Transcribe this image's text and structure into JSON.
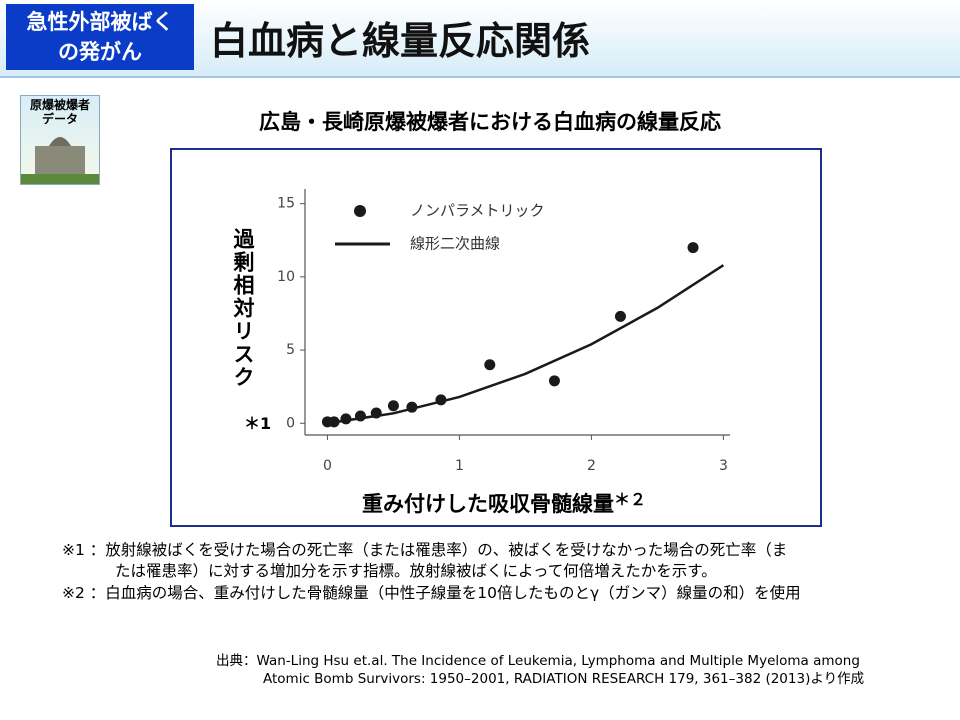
{
  "header": {
    "badge": [
      "急性外部被ばく",
      "の発がん"
    ],
    "title": "白血病と線量反応関係"
  },
  "icon": {
    "label": [
      "原爆被爆者",
      "データ"
    ]
  },
  "chart_data": {
    "type": "combo",
    "title": "広島・長崎原爆被爆者における白血病の線量反応",
    "y_label": "過剰相対リスク",
    "y_label_note": "＊1",
    "x_label": "重み付けした吸収骨髄線量",
    "x_label_note": "＊２",
    "xlim": [
      -0.17,
      3.05
    ],
    "ylim": [
      -0.8,
      16
    ],
    "xticks": [
      0,
      1,
      2,
      3
    ],
    "yticks": [
      0,
      5,
      10,
      15
    ],
    "legend": "upper left",
    "series": [
      {
        "name": "ノンパラメトリック",
        "type": "scatter",
        "color": "#1a1a1a",
        "x": [
          0,
          0.05,
          0.14,
          0.25,
          0.37,
          0.5,
          0.64,
          0.86,
          1.23,
          1.72,
          2.22,
          2.77
        ],
        "values": [
          0.1,
          0.1,
          0.3,
          0.5,
          0.7,
          1.2,
          1.1,
          1.6,
          4.0,
          2.9,
          7.3,
          12.0
        ]
      },
      {
        "name": "線形二次曲線",
        "type": "line",
        "color": "#1a1a1a",
        "x": [
          0,
          0.5,
          1,
          1.5,
          2,
          2.5,
          3
        ],
        "values": [
          0,
          0.68,
          1.8,
          3.38,
          5.4,
          7.88,
          10.8
        ]
      }
    ]
  },
  "notes": [
    {
      "mark": "※1 ：",
      "lines": [
        "放射線被ばくを受けた場合の死亡率（または罹患率）の、被ばくを受けなかった場合の死亡率（ま",
        "たは罹患率）に対する増加分を示す指標。放射線被ばくによって何倍増えたかを示す。"
      ]
    },
    {
      "mark": "※2 ：",
      "lines": [
        "白血病の場合、重み付けした骨髄線量（中性子線量を10倍したものとγ（ガンマ）線量の和）を使用"
      ]
    }
  ],
  "source": {
    "mark": "出典：",
    "lines": [
      "Wan-Ling Hsu et.al. The Incidence of Leukemia, Lymphoma and Multiple Myeloma  among",
      "Atomic Bomb Survivors:  1950–2001, RADIATION  RESEARCH 179, 361–382 (2013)より作成"
    ]
  }
}
